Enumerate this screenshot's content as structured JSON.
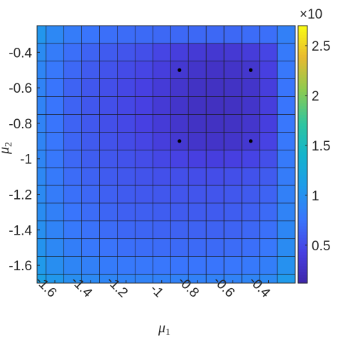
{
  "chart_data": {
    "type": "heatmap",
    "xlabel": "μ1",
    "ylabel": "μ2",
    "x_ticks": [
      "-1.6",
      "-1.4",
      "-1.2",
      "-1",
      "-0.8",
      "-0.6",
      "-0.4"
    ],
    "y_ticks": [
      "-0.4",
      "-0.6",
      "-0.8",
      "-1",
      "-1.2",
      "-1.4",
      "-1.6"
    ],
    "xlim": [
      -1.7,
      -0.25
    ],
    "ylim": [
      -1.7,
      -0.25
    ],
    "colorbar": {
      "ticks": [
        "0.5",
        "1",
        "1.5",
        "2",
        "2.5"
      ],
      "tick_values": [
        0.5,
        1,
        1.5,
        2,
        2.5
      ],
      "range": [
        0.12,
        2.7
      ],
      "multiplier_label": "×10",
      "colormap": "parula"
    },
    "grid": {
      "x_centers": [
        -1.7,
        -1.6,
        -1.5,
        -1.4,
        -1.3,
        -1.2,
        -1.1,
        -1.0,
        -0.9,
        -0.8,
        -0.7,
        -0.6,
        -0.5,
        -0.4,
        -0.3
      ],
      "y_centers": [
        -0.3,
        -0.4,
        -0.5,
        -0.6,
        -0.7,
        -0.8,
        -0.9,
        -1.0,
        -1.1,
        -1.2,
        -1.3,
        -1.4,
        -1.5,
        -1.6,
        -1.7
      ],
      "values": [
        [
          1.05,
          0.92,
          0.82,
          0.76,
          0.72,
          0.7,
          0.69,
          0.68,
          0.68,
          0.68,
          0.68,
          0.68,
          0.7,
          0.72,
          0.85
        ],
        [
          0.95,
          0.82,
          0.72,
          0.65,
          0.6,
          0.56,
          0.52,
          0.46,
          0.4,
          0.36,
          0.34,
          0.35,
          0.38,
          0.46,
          0.8
        ],
        [
          0.9,
          0.78,
          0.68,
          0.6,
          0.55,
          0.5,
          0.46,
          0.4,
          0.34,
          0.3,
          0.28,
          0.29,
          0.32,
          0.42,
          0.78
        ],
        [
          0.88,
          0.76,
          0.65,
          0.57,
          0.52,
          0.47,
          0.43,
          0.37,
          0.31,
          0.27,
          0.26,
          0.27,
          0.3,
          0.4,
          0.76
        ],
        [
          0.88,
          0.76,
          0.65,
          0.57,
          0.52,
          0.47,
          0.43,
          0.36,
          0.3,
          0.26,
          0.25,
          0.26,
          0.3,
          0.4,
          0.76
        ],
        [
          0.88,
          0.76,
          0.65,
          0.58,
          0.52,
          0.48,
          0.43,
          0.37,
          0.31,
          0.27,
          0.26,
          0.27,
          0.31,
          0.41,
          0.77
        ],
        [
          0.89,
          0.77,
          0.66,
          0.59,
          0.54,
          0.5,
          0.46,
          0.4,
          0.34,
          0.3,
          0.29,
          0.3,
          0.34,
          0.44,
          0.78
        ],
        [
          0.9,
          0.78,
          0.68,
          0.61,
          0.57,
          0.54,
          0.51,
          0.47,
          0.44,
          0.42,
          0.41,
          0.42,
          0.45,
          0.52,
          0.8
        ],
        [
          0.92,
          0.8,
          0.7,
          0.64,
          0.6,
          0.57,
          0.55,
          0.53,
          0.52,
          0.51,
          0.51,
          0.52,
          0.54,
          0.6,
          0.82
        ],
        [
          0.94,
          0.82,
          0.73,
          0.67,
          0.63,
          0.6,
          0.58,
          0.57,
          0.56,
          0.56,
          0.56,
          0.57,
          0.59,
          0.65,
          0.85
        ],
        [
          0.96,
          0.85,
          0.76,
          0.7,
          0.66,
          0.63,
          0.62,
          0.61,
          0.6,
          0.6,
          0.6,
          0.61,
          0.63,
          0.69,
          0.88
        ],
        [
          0.99,
          0.88,
          0.79,
          0.74,
          0.7,
          0.67,
          0.66,
          0.65,
          0.64,
          0.64,
          0.64,
          0.65,
          0.67,
          0.73,
          0.91
        ],
        [
          1.02,
          0.92,
          0.84,
          0.78,
          0.75,
          0.72,
          0.71,
          0.7,
          0.69,
          0.69,
          0.69,
          0.7,
          0.72,
          0.78,
          0.95
        ],
        [
          1.08,
          0.98,
          0.9,
          0.85,
          0.81,
          0.79,
          0.78,
          0.77,
          0.76,
          0.76,
          0.76,
          0.77,
          0.79,
          0.84,
          1.0
        ],
        [
          1.15,
          1.06,
          0.98,
          0.93,
          0.9,
          0.88,
          0.87,
          0.86,
          0.86,
          0.86,
          0.86,
          0.87,
          0.89,
          0.93,
          1.08
        ]
      ]
    },
    "points": [
      {
        "x": -0.9,
        "y": -0.5
      },
      {
        "x": -0.5,
        "y": -0.5
      },
      {
        "x": -0.9,
        "y": -0.9
      },
      {
        "x": -0.5,
        "y": -0.9
      }
    ]
  }
}
